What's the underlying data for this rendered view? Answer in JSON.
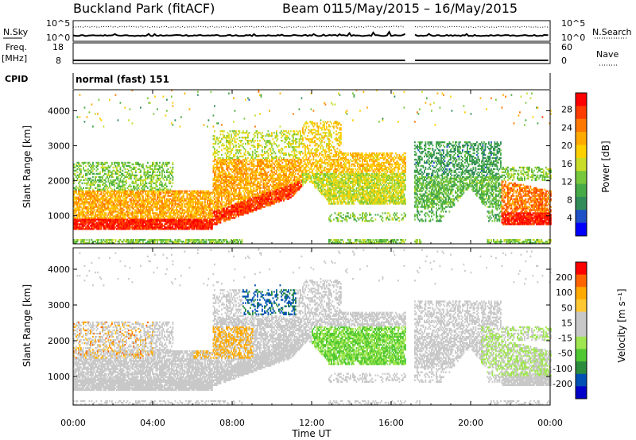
{
  "header": {
    "title": "Buckland Park (fitACF)",
    "beam": "Beam 01",
    "dates": "15/May/2015 – 16/May/2015"
  },
  "status_panel": {
    "nsky_label": "N.Sky",
    "nsky_ticks": [
      "10^5",
      "10^0"
    ],
    "nsearch_label": "N.Search",
    "nsearch_ticks": [
      "10^5",
      "10^0"
    ],
    "freq_label": "Freq.",
    "freq_unit": "[MHz]",
    "freq_ticks": [
      "18",
      "8"
    ],
    "nave_label": "Nave",
    "nave_ticks": [
      "60",
      "0"
    ],
    "cpid_label": "CPID",
    "cpid_value": "normal (fast) 151"
  },
  "chart_data": [
    {
      "type": "heatmap",
      "name": "power-panel",
      "ylabel": "Slant Range [km]",
      "xlim": [
        0,
        24
      ],
      "ylim": [
        200,
        4600
      ],
      "yticks": [
        1000,
        2000,
        3000,
        4000
      ],
      "xticks": [
        "00:00",
        "04:00",
        "08:00",
        "12:00",
        "16:00",
        "20:00",
        "00:00"
      ],
      "colorbar": {
        "label": "Power [dB]",
        "range": [
          0,
          32
        ],
        "ticks": [
          "4",
          "8",
          "12",
          "16",
          "20",
          "24",
          "28"
        ],
        "colors": [
          "#0000ff",
          "#1e50c8",
          "#328c5a",
          "#46aa46",
          "#78c83c",
          "#c8dc28",
          "#ffd000",
          "#ffaa00",
          "#ff7800",
          "#ff3c00",
          "#ff0000"
        ]
      }
    },
    {
      "type": "heatmap",
      "name": "velocity-panel",
      "ylabel": "Slant Range [km]",
      "xlabel": "Time UT",
      "xlim": [
        0,
        24
      ],
      "ylim": [
        200,
        4600
      ],
      "yticks": [
        1000,
        2000,
        3000,
        4000
      ],
      "xticks": [
        "00:00",
        "04:00",
        "08:00",
        "12:00",
        "16:00",
        "20:00",
        "00:00"
      ],
      "colorbar": {
        "label": "Velocity [m s⁻¹]",
        "ticks": [
          "200",
          "100",
          "50",
          "15",
          "-15",
          "-50",
          "-100",
          "-200"
        ],
        "colors": [
          "#0000c8",
          "#0050b4",
          "#2a8c3c",
          "#50c832",
          "#a0e650",
          "#c8c8c8",
          "#c8c8c8",
          "#ffc832",
          "#ffaa00",
          "#ff6400",
          "#ff0000"
        ]
      }
    }
  ]
}
